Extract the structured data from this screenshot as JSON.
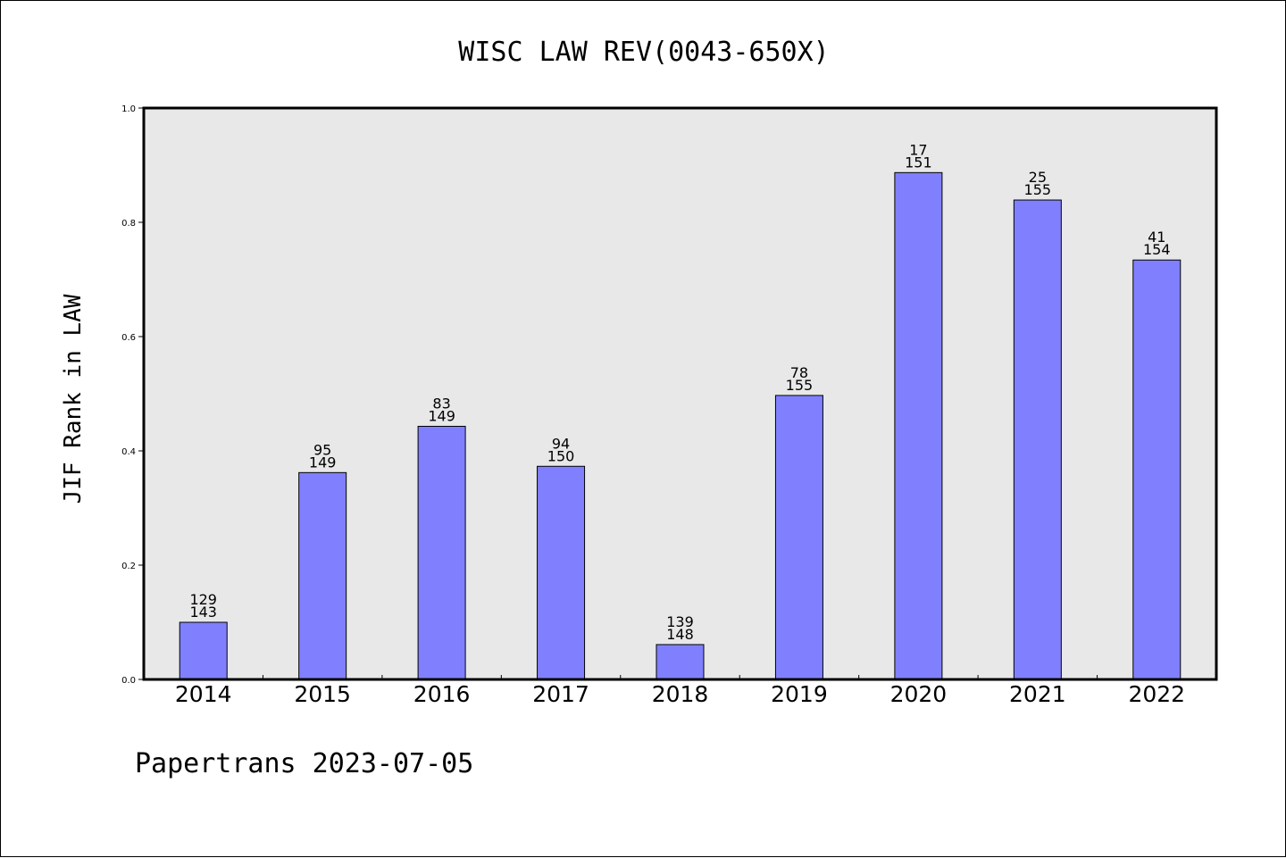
{
  "chart_data": {
    "type": "bar",
    "title": "WISC LAW REV(0043-650X)",
    "xlabel": "",
    "ylabel": "JIF Rank in LAW",
    "ylim": [
      0.0,
      1.0
    ],
    "yticks": [
      "0.0",
      "0.2",
      "0.4",
      "0.6",
      "0.8",
      "1.0"
    ],
    "categories": [
      "2014",
      "2015",
      "2016",
      "2017",
      "2018",
      "2019",
      "2020",
      "2021",
      "2022"
    ],
    "values": [
      0.1,
      0.362,
      0.443,
      0.373,
      0.061,
      0.497,
      0.887,
      0.839,
      0.734
    ],
    "labels": [
      {
        "rank": "129",
        "total": "143"
      },
      {
        "rank": "95",
        "total": "149"
      },
      {
        "rank": "83",
        "total": "149"
      },
      {
        "rank": "94",
        "total": "150"
      },
      {
        "rank": "139",
        "total": "148"
      },
      {
        "rank": "78",
        "total": "155"
      },
      {
        "rank": "17",
        "total": "151"
      },
      {
        "rank": "25",
        "total": "155"
      },
      {
        "rank": "41",
        "total": "154"
      }
    ],
    "grid": false,
    "colors": {
      "bar": "#8080ff",
      "plot_bg": "#e8e8e8"
    }
  },
  "footer": "Papertrans 2023-07-05"
}
